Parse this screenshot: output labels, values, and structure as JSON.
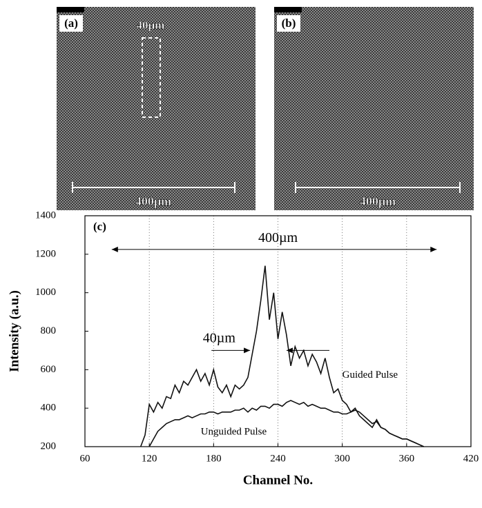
{
  "panels": [
    {
      "label": "(a)",
      "inset_label": "40µm",
      "scale_label": "400µm"
    },
    {
      "label": "(b)",
      "scale_label": "400µm"
    }
  ],
  "chart_data": {
    "type": "line",
    "panel_label": "(c)",
    "xlabel": "Channel No.",
    "ylabel": "Intensity (a.u.)",
    "xlim": [
      60,
      420
    ],
    "xticks": [
      60,
      120,
      180,
      240,
      300,
      360,
      420
    ],
    "ylim": [
      200,
      1400
    ],
    "yticks": [
      200,
      400,
      600,
      800,
      1000,
      1200,
      1400
    ],
    "grid": true,
    "annotations": [
      "400µm",
      "40µm"
    ],
    "x": [
      112,
      116,
      120,
      124,
      128,
      132,
      136,
      140,
      144,
      148,
      152,
      156,
      160,
      164,
      168,
      172,
      176,
      180,
      184,
      188,
      192,
      196,
      200,
      204,
      208,
      212,
      216,
      220,
      224,
      228,
      232,
      236,
      240,
      244,
      248,
      252,
      256,
      260,
      264,
      268,
      272,
      276,
      280,
      284,
      288,
      292,
      296,
      300,
      304,
      308,
      312,
      316,
      320,
      324,
      328,
      332,
      336,
      340,
      344,
      348,
      352,
      356,
      360,
      364,
      368,
      372,
      376
    ],
    "series": [
      {
        "name": "Guided Pulse",
        "color": "#111111",
        "values": [
          200,
          260,
          420,
          380,
          430,
          400,
          460,
          450,
          520,
          480,
          540,
          520,
          560,
          600,
          540,
          580,
          520,
          600,
          510,
          480,
          520,
          460,
          520,
          500,
          520,
          560,
          680,
          800,
          960,
          1140,
          860,
          1000,
          760,
          900,
          780,
          620,
          720,
          660,
          700,
          620,
          680,
          640,
          580,
          660,
          560,
          480,
          500,
          440,
          420,
          380,
          400,
          360,
          340,
          320,
          300,
          340,
          300,
          290,
          270,
          260,
          250,
          240,
          240,
          230,
          220,
          210,
          200
        ]
      },
      {
        "name": "Unguided Pulse",
        "color": "#111111",
        "values": [
          null,
          null,
          200,
          240,
          280,
          300,
          320,
          330,
          340,
          340,
          350,
          360,
          350,
          360,
          370,
          370,
          380,
          380,
          370,
          380,
          380,
          380,
          390,
          390,
          400,
          380,
          400,
          390,
          410,
          410,
          400,
          420,
          420,
          410,
          430,
          440,
          430,
          420,
          430,
          410,
          420,
          410,
          400,
          400,
          390,
          380,
          380,
          370,
          370,
          380,
          390,
          380,
          360,
          340,
          320,
          330,
          300,
          290,
          270,
          260,
          250,
          240,
          240,
          230,
          220,
          210,
          200
        ]
      }
    ]
  }
}
